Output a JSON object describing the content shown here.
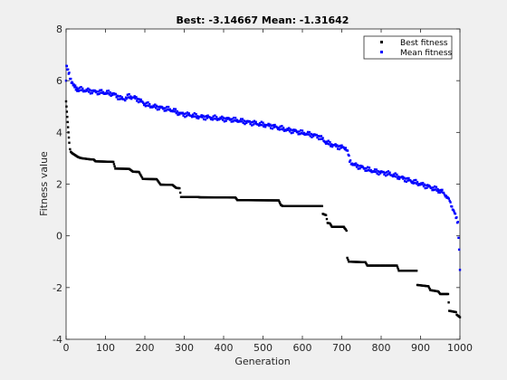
{
  "chart_data": {
    "type": "scatter",
    "title": "Best: -3.14667 Mean: -1.31642",
    "xlabel": "Generation",
    "ylabel": "Fitness value",
    "xlim": [
      0,
      1000
    ],
    "ylim": [
      -4,
      8
    ],
    "xticks": [
      0,
      100,
      200,
      300,
      400,
      500,
      600,
      700,
      800,
      900,
      1000
    ],
    "yticks": [
      -4,
      -2,
      0,
      2,
      4,
      6,
      8
    ],
    "grid": false,
    "legend_position": "top-right",
    "series": [
      {
        "name": "Best fitness",
        "color": "#000000",
        "marker": "square-dot",
        "points": [
          [
            0,
            5.2
          ],
          [
            1,
            5.0
          ],
          [
            2,
            4.8
          ],
          [
            3,
            4.6
          ],
          [
            4,
            4.4
          ],
          [
            5,
            4.2
          ],
          [
            6,
            4.0
          ],
          [
            7,
            3.8
          ],
          [
            8,
            3.6
          ],
          [
            10,
            3.35
          ],
          [
            12,
            3.25
          ],
          [
            15,
            3.2
          ],
          [
            20,
            3.15
          ],
          [
            25,
            3.1
          ],
          [
            30,
            3.05
          ],
          [
            35,
            3.02
          ],
          [
            40,
            3.0
          ],
          [
            50,
            2.98
          ],
          [
            60,
            2.96
          ],
          [
            70,
            2.95
          ],
          [
            75,
            2.88
          ],
          [
            100,
            2.87
          ],
          [
            120,
            2.86
          ],
          [
            125,
            2.6
          ],
          [
            160,
            2.59
          ],
          [
            170,
            2.48
          ],
          [
            185,
            2.47
          ],
          [
            195,
            2.2
          ],
          [
            230,
            2.19
          ],
          [
            240,
            1.98
          ],
          [
            270,
            1.97
          ],
          [
            280,
            1.85
          ],
          [
            288,
            1.84
          ],
          [
            292,
            1.5
          ],
          [
            335,
            1.5
          ],
          [
            340,
            1.49
          ],
          [
            430,
            1.48
          ],
          [
            435,
            1.38
          ],
          [
            540,
            1.37
          ],
          [
            545,
            1.2
          ],
          [
            550,
            1.15
          ],
          [
            650,
            1.15
          ],
          [
            652,
            0.85
          ],
          [
            660,
            0.8
          ],
          [
            664,
            0.5
          ],
          [
            670,
            0.48
          ],
          [
            675,
            0.35
          ],
          [
            705,
            0.35
          ],
          [
            708,
            0.28
          ],
          [
            710,
            0.25
          ],
          [
            712,
            0.2
          ],
          [
            714,
            -0.85
          ],
          [
            718,
            -1.0
          ],
          [
            760,
            -1.02
          ],
          [
            765,
            -1.15
          ],
          [
            840,
            -1.15
          ],
          [
            845,
            -1.35
          ],
          [
            890,
            -1.35
          ],
          [
            892,
            -1.9
          ],
          [
            920,
            -1.95
          ],
          [
            925,
            -2.1
          ],
          [
            945,
            -2.15
          ],
          [
            950,
            -2.25
          ],
          [
            970,
            -2.25
          ],
          [
            973,
            -2.9
          ],
          [
            990,
            -2.95
          ],
          [
            992,
            -3.05
          ],
          [
            1000,
            -3.14667
          ]
        ]
      },
      {
        "name": "Mean fitness",
        "color": "#0000ff",
        "marker": "square-dot",
        "points": [
          [
            0,
            6.0
          ],
          [
            1,
            6.5
          ],
          [
            2,
            6.55
          ],
          [
            3,
            6.45
          ],
          [
            5,
            6.35
          ],
          [
            8,
            6.25
          ],
          [
            10,
            6.15
          ],
          [
            12,
            6.05
          ],
          [
            15,
            5.95
          ],
          [
            18,
            5.85
          ],
          [
            20,
            5.78
          ],
          [
            25,
            5.7
          ],
          [
            30,
            5.68
          ],
          [
            40,
            5.65
          ],
          [
            50,
            5.62
          ],
          [
            60,
            5.6
          ],
          [
            70,
            5.58
          ],
          [
            80,
            5.56
          ],
          [
            90,
            5.55
          ],
          [
            100,
            5.53
          ],
          [
            110,
            5.52
          ],
          [
            120,
            5.48
          ],
          [
            130,
            5.4
          ],
          [
            140,
            5.3
          ],
          [
            150,
            5.3
          ],
          [
            160,
            5.4
          ],
          [
            170,
            5.35
          ],
          [
            180,
            5.3
          ],
          [
            190,
            5.2
          ],
          [
            200,
            5.1
          ],
          [
            210,
            5.05
          ],
          [
            220,
            5.0
          ],
          [
            230,
            4.98
          ],
          [
            240,
            4.95
          ],
          [
            250,
            4.92
          ],
          [
            260,
            4.9
          ],
          [
            270,
            4.85
          ],
          [
            280,
            4.8
          ],
          [
            290,
            4.72
          ],
          [
            300,
            4.7
          ],
          [
            320,
            4.66
          ],
          [
            340,
            4.6
          ],
          [
            360,
            4.58
          ],
          [
            380,
            4.55
          ],
          [
            400,
            4.52
          ],
          [
            420,
            4.5
          ],
          [
            440,
            4.45
          ],
          [
            460,
            4.4
          ],
          [
            480,
            4.35
          ],
          [
            500,
            4.3
          ],
          [
            520,
            4.25
          ],
          [
            540,
            4.18
          ],
          [
            560,
            4.1
          ],
          [
            580,
            4.05
          ],
          [
            600,
            3.98
          ],
          [
            620,
            3.92
          ],
          [
            640,
            3.85
          ],
          [
            650,
            3.75
          ],
          [
            660,
            3.62
          ],
          [
            670,
            3.55
          ],
          [
            680,
            3.5
          ],
          [
            690,
            3.45
          ],
          [
            700,
            3.42
          ],
          [
            710,
            3.4
          ],
          [
            715,
            3.25
          ],
          [
            720,
            2.9
          ],
          [
            730,
            2.75
          ],
          [
            740,
            2.7
          ],
          [
            760,
            2.6
          ],
          [
            780,
            2.5
          ],
          [
            800,
            2.45
          ],
          [
            820,
            2.4
          ],
          [
            840,
            2.3
          ],
          [
            860,
            2.2
          ],
          [
            880,
            2.1
          ],
          [
            900,
            2.0
          ],
          [
            920,
            1.9
          ],
          [
            940,
            1.8
          ],
          [
            955,
            1.7
          ],
          [
            965,
            1.55
          ],
          [
            972,
            1.4
          ],
          [
            978,
            1.2
          ],
          [
            985,
            0.95
          ],
          [
            990,
            0.7
          ],
          [
            995,
            0.5
          ],
          [
            998,
            -0.5
          ],
          [
            1000,
            -1.31642
          ]
        ]
      }
    ]
  }
}
